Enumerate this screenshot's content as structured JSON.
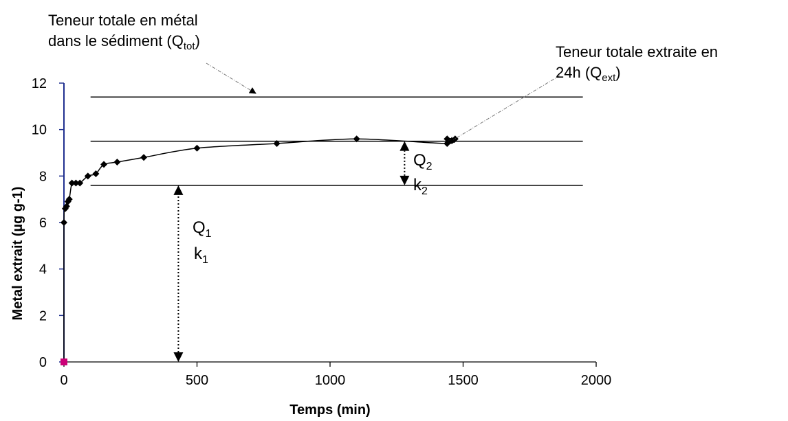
{
  "chart_data": {
    "type": "scatter",
    "title": "",
    "xlabel": "Temps (min)",
    "ylabel": "Metal extrait (µg g-1)",
    "xlim": [
      0,
      2000
    ],
    "ylim": [
      0,
      12
    ],
    "x_ticks": [
      "0",
      "500",
      "1000",
      "1500",
      "2000"
    ],
    "y_ticks": [
      "0",
      "2",
      "4",
      "6",
      "8",
      "10",
      "12"
    ],
    "grid": false,
    "legend": "none",
    "series": [
      {
        "points": [
          [
            0,
            0
          ],
          [
            0,
            6
          ],
          [
            5,
            6.6
          ],
          [
            10,
            6.7
          ],
          [
            15,
            6.9
          ],
          [
            20,
            7
          ],
          [
            30,
            7.7
          ],
          [
            45,
            7.7
          ],
          [
            60,
            7.7
          ],
          [
            90,
            8
          ],
          [
            120,
            8.1
          ],
          [
            150,
            8.5
          ],
          [
            200,
            8.6
          ],
          [
            300,
            8.8
          ],
          [
            500,
            9.2
          ],
          [
            800,
            9.4
          ],
          [
            1100,
            9.6
          ],
          [
            1440,
            9.4
          ],
          [
            1440,
            9.6
          ],
          [
            1470,
            9.6
          ]
        ],
        "color": "#000000"
      }
    ],
    "origin_marker": {
      "x": 0,
      "y": 0,
      "color": "#cc0077"
    },
    "y_axis_color": "#1f2f8f",
    "reference_lines": [
      {
        "y": 11.4,
        "x_from": 100,
        "x_to": 1950
      },
      {
        "y": 9.5,
        "x_from": 100,
        "x_to": 1950
      },
      {
        "y": 7.6,
        "x_from": 100,
        "x_to": 1950
      }
    ],
    "annotations": {
      "qtot_line1": "Teneur totale en métal",
      "qtot_line2_pre": "dans le sédiment (Q",
      "qtot_sub": "tot",
      "qtot_post": ")",
      "qext_line1": "Teneur totale extraite en",
      "qext_line2_pre": "24h (Q",
      "qext_sub": "ext",
      "qext_post": ")",
      "q1_base": "Q",
      "q1_sub": "1",
      "k1_base": "k",
      "k1_sub": "1",
      "q2_base": "Q",
      "q2_sub": "2",
      "k2_base": "k",
      "k2_sub": "2"
    },
    "q1_arrow": {
      "x": 430,
      "y_from": 0,
      "y_to": 7.6
    },
    "q2_arrow": {
      "x": 1280,
      "y_from": 7.6,
      "y_to": 9.5
    }
  }
}
